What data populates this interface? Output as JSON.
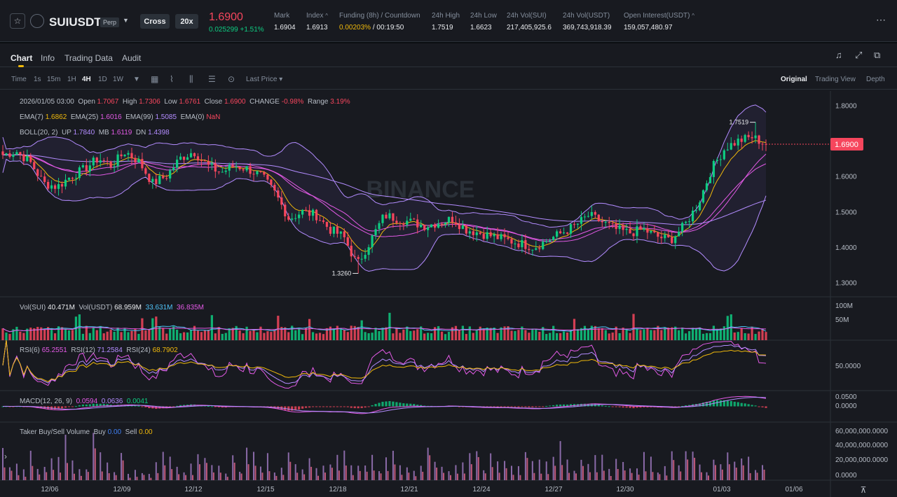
{
  "header": {
    "star_icon": "star-icon",
    "symbol": "SUIUSDT",
    "perp_badge": "Perp",
    "margin_mode": "Cross",
    "leverage": "20x",
    "last_price": "1.6900",
    "change_abs": "0.025299",
    "change_pct": "+1.51%",
    "stats": [
      {
        "label": "Mark",
        "value": "1.6904"
      },
      {
        "label": "Index",
        "value": "1.6913"
      },
      {
        "label": "Funding (8h) / Countdown",
        "value_a": "0.00203%",
        "value_b": "/ 00:19:50"
      },
      {
        "label": "24h High",
        "value": "1.7519"
      },
      {
        "label": "24h Low",
        "value": "1.6623"
      },
      {
        "label": "24h Vol(SUI)",
        "value": "217,405,925.6"
      },
      {
        "label": "24h Vol(USDT)",
        "value": "369,743,918.39"
      },
      {
        "label": "Open Interest(USDT)",
        "value": "159,057,480.97"
      }
    ]
  },
  "tabs": [
    "Chart",
    "Info",
    "Trading Data",
    "Audit"
  ],
  "toolbar": {
    "intervals": [
      "Time",
      "1s",
      "15m",
      "1H",
      "4H",
      "1D",
      "1W"
    ],
    "active_interval": "4H",
    "price_type": "Last Price",
    "views": [
      "Original",
      "Trading View",
      "Depth"
    ],
    "active_view": "Original"
  },
  "legend": {
    "ohlc": {
      "date": "2026/01/05 03:00",
      "open": "1.7067",
      "high": "1.7306",
      "low": "1.6761",
      "close": "1.6900",
      "change": "-0.98%",
      "range": "3.19%"
    },
    "ema": [
      {
        "label": "EMA(7)",
        "value": "1.6862",
        "color": "#f0b90b"
      },
      {
        "label": "EMA(25)",
        "value": "1.6016",
        "color": "#e35ae6"
      },
      {
        "label": "EMA(99)",
        "value": "1.5085",
        "color": "#b38cff"
      },
      {
        "label": "EMA(0)",
        "value": "NaN",
        "color": "#f6465d"
      }
    ],
    "boll": {
      "label": "BOLL(20, 2)",
      "up_label": "UP",
      "up": "1.7840",
      "mb_label": "MB",
      "mb": "1.6119",
      "dn_label": "DN",
      "dn": "1.4398"
    },
    "vol": {
      "sui_label": "Vol(SUI)",
      "sui": "40.471M",
      "usdt_label": "Vol(USDT)",
      "usdt": "68.959M",
      "ma1": "33.631M",
      "ma2": "36.835M"
    },
    "rsi": [
      {
        "label": "RSI(6)",
        "value": "65.2551"
      },
      {
        "label": "RSI(12)",
        "value": "71.2584"
      },
      {
        "label": "RSI(24)",
        "value": "68.7902"
      }
    ],
    "macd": {
      "label": "MACD(12, 26, 9)",
      "dif": "0.0594",
      "dea": "0.0636",
      "hist": "0.0041"
    },
    "taker": {
      "label": "Taker Buy/Sell Volume",
      "buy_label": "Buy",
      "buy": "0.00",
      "sell_label": "Sell",
      "sell": "0.00"
    }
  },
  "watermark": "BINANCE",
  "price_axis": [
    "1.8000",
    "1.7000",
    "1.6000",
    "1.5000",
    "1.4000",
    "1.3000"
  ],
  "current_price_tag": "1.6900",
  "high_marker": "1.7519",
  "low_marker": "1.3260",
  "vol_axis": [
    "100M",
    "50M"
  ],
  "rsi_axis": [
    "50.0000"
  ],
  "macd_axis": [
    "0.0500",
    "0.0000"
  ],
  "taker_axis": [
    "60,000,000.0000",
    "40,000,000.0000",
    "20,000,000.0000",
    "0.0000"
  ],
  "date_axis": [
    "12/06",
    "12/09",
    "12/12",
    "12/15",
    "12/18",
    "12/21",
    "12/24",
    "12/27",
    "12/30",
    "01/03",
    "01/06"
  ],
  "colors": {
    "up": "#0ecb81",
    "down": "#f6465d",
    "accent": "#f0b90b"
  },
  "chart_data": {
    "type": "candlestick",
    "interval": "4H",
    "x_range": [
      "12/05",
      "01/05"
    ],
    "price_ylim": [
      1.26,
      1.84
    ],
    "close_path": [
      1.66,
      1.67,
      1.64,
      1.58,
      1.57,
      1.6,
      1.62,
      1.65,
      1.63,
      1.67,
      1.64,
      1.58,
      1.6,
      1.65,
      1.67,
      1.63,
      1.61,
      1.63,
      1.62,
      1.6,
      1.55,
      1.48,
      1.5,
      1.49,
      1.45,
      1.43,
      1.35,
      1.42,
      1.49,
      1.48,
      1.47,
      1.46,
      1.47,
      1.48,
      1.45,
      1.44,
      1.43,
      1.42,
      1.41,
      1.4,
      1.42,
      1.44,
      1.46,
      1.49,
      1.47,
      1.45,
      1.44,
      1.45,
      1.43,
      1.42,
      1.46,
      1.52,
      1.62,
      1.68,
      1.7,
      1.71,
      1.69
    ],
    "high": 1.7519,
    "low": 1.326,
    "last": 1.69
  }
}
